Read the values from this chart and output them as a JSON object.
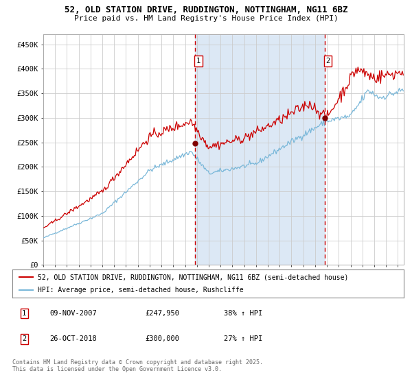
{
  "title_line1": "52, OLD STATION DRIVE, RUDDINGTON, NOTTINGHAM, NG11 6BZ",
  "title_line2": "Price paid vs. HM Land Registry's House Price Index (HPI)",
  "legend_line1": "52, OLD STATION DRIVE, RUDDINGTON, NOTTINGHAM, NG11 6BZ (semi-detached house)",
  "legend_line2": "HPI: Average price, semi-detached house, Rushcliffe",
  "annotation1_date": "09-NOV-2007",
  "annotation1_price": "£247,950",
  "annotation1_hpi": "38% ↑ HPI",
  "annotation2_date": "26-OCT-2018",
  "annotation2_price": "£300,000",
  "annotation2_hpi": "27% ↑ HPI",
  "purchase1_year": 2007.86,
  "purchase1_value": 247950,
  "purchase2_year": 2018.82,
  "purchase2_value": 300000,
  "hpi_color": "#7ab8d9",
  "property_color": "#cc0000",
  "marker_color": "#800000",
  "vline_color": "#cc0000",
  "shade_color": "#dce8f5",
  "background_color": "#ffffff",
  "grid_color": "#cccccc",
  "ylim": [
    0,
    470000
  ],
  "ylabel_ticks": [
    0,
    50000,
    100000,
    150000,
    200000,
    250000,
    300000,
    350000,
    400000,
    450000
  ],
  "ylabel_labels": [
    "£0",
    "£50K",
    "£100K",
    "£150K",
    "£200K",
    "£250K",
    "£300K",
    "£350K",
    "£400K",
    "£450K"
  ],
  "copyright_text": "Contains HM Land Registry data © Crown copyright and database right 2025.\nThis data is licensed under the Open Government Licence v3.0.",
  "xlim_start": 1995,
  "xlim_end": 2025.5
}
